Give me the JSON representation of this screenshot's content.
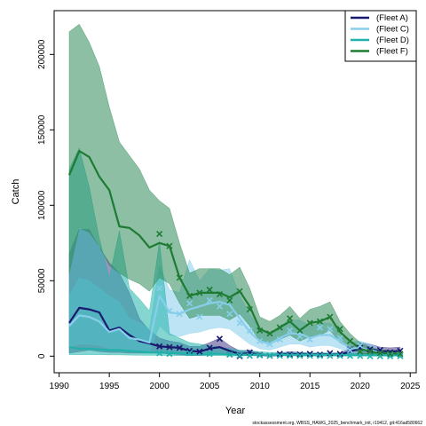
{
  "chart_data": {
    "type": "line",
    "title": "",
    "xlabel": "Year",
    "ylabel": "Catch",
    "xlim": [
      1989.5,
      2025.6
    ],
    "ylim": [
      -11000,
      229000
    ],
    "xticks": [
      1990,
      1995,
      2000,
      2005,
      2010,
      2015,
      2020,
      2025
    ],
    "yticks": [
      0,
      50000,
      100000,
      150000,
      200000
    ],
    "legend_position": "top-right",
    "footer": "stockassessment.org, WBSS_HAWG_2025_benchmark_init, r19412, git:416ad580662",
    "x": [
      1991,
      1992,
      1993,
      1994,
      1995,
      1996,
      1997,
      1998,
      1999,
      2000,
      2001,
      2002,
      2003,
      2004,
      2005,
      2006,
      2007,
      2008,
      2009,
      2010,
      2011,
      2012,
      2013,
      2014,
      2015,
      2016,
      2017,
      2018,
      2019,
      2020,
      2021,
      2022,
      2023,
      2024
    ],
    "series": [
      {
        "name": "(Fleet A)",
        "color": "#191970",
        "band_color": "#483d8b",
        "fit": [
          22000,
          32000,
          31000,
          29000,
          17000,
          19000,
          14000,
          10000,
          8500,
          6500,
          6000,
          5500,
          3500,
          3000,
          5000,
          6000,
          3500,
          1500,
          2000,
          1000,
          500,
          1000,
          1500,
          1200,
          1000,
          1000,
          1000,
          1000,
          3000,
          5000,
          4500,
          3500,
          3000,
          3500
        ],
        "lower": [
          2000,
          3000,
          4000,
          3000,
          2500,
          2500,
          2000,
          2000,
          2000,
          2000,
          1500,
          1000,
          500,
          500,
          1000,
          1500,
          800,
          300,
          500,
          200,
          100,
          200,
          300,
          200,
          200,
          200,
          200,
          200,
          500,
          1500,
          1000,
          800,
          700,
          800
        ],
        "upper": [
          68000,
          84000,
          84000,
          72000,
          62000,
          55000,
          42000,
          25000,
          17000,
          12000,
          10000,
          9000,
          6500,
          6500,
          9000,
          12000,
          7000,
          3500,
          4000,
          2000,
          1200,
          2000,
          3000,
          2500,
          2000,
          2000,
          2000,
          2000,
          5500,
          9000,
          8000,
          6000,
          5500,
          6000
        ],
        "obs": [
          null,
          null,
          null,
          null,
          null,
          null,
          null,
          null,
          null,
          6500,
          6000,
          5500,
          3500,
          3000,
          5500,
          11500,
          1000,
          0,
          2500,
          800,
          300,
          1500,
          1000,
          1200,
          1500,
          1000,
          2000,
          1500,
          4500,
          5500,
          4500,
          4000,
          2500,
          3500
        ]
      },
      {
        "name": "(Fleet C)",
        "color": "#87ceeb",
        "band_color": "#87ceeb",
        "fit": [
          20000,
          27000,
          26000,
          23000,
          16000,
          18000,
          12000,
          11000,
          9000,
          40000,
          29000,
          28000,
          31000,
          33000,
          35000,
          36000,
          34000,
          25000,
          16000,
          10000,
          8000,
          12000,
          15000,
          15000,
          12000,
          14000,
          14000,
          10000,
          5000,
          5500,
          4000,
          2500,
          1500,
          1500
        ],
        "lower": [
          6000,
          8000,
          8000,
          7000,
          5000,
          5000,
          4000,
          4000,
          3000,
          20000,
          14000,
          13000,
          15000,
          16000,
          18000,
          19000,
          18000,
          13000,
          8000,
          5000,
          4000,
          6000,
          8000,
          8000,
          6000,
          7000,
          7000,
          5000,
          2500,
          2500,
          2000,
          1000,
          700,
          700
        ],
        "upper": [
          40000,
          52000,
          50000,
          45000,
          40000,
          36000,
          25000,
          22000,
          18000,
          60000,
          44000,
          42000,
          64000,
          50000,
          58000,
          57000,
          58000,
          40000,
          28000,
          18000,
          14000,
          20000,
          24000,
          24000,
          20000,
          22000,
          22000,
          17000,
          9000,
          10000,
          8000,
          5000,
          3000,
          3000
        ],
        "obs": [
          null,
          null,
          null,
          null,
          null,
          null,
          null,
          null,
          null,
          45000,
          30000,
          28000,
          35000,
          26000,
          37000,
          33000,
          28000,
          22000,
          17000,
          10000,
          8000,
          11000,
          17000,
          13000,
          11000,
          19000,
          18000,
          12000,
          4000,
          7000,
          3000,
          2000,
          1000,
          1000
        ]
      },
      {
        "name": "(Fleet D)",
        "color": "#20b2aa",
        "band_color": "#20b2aa",
        "fit": [
          6000,
          5000,
          5000,
          4500,
          4000,
          4000,
          3500,
          3000,
          2500,
          2500,
          2000,
          2000,
          1500,
          1500,
          1500,
          1500,
          1200,
          1000,
          1000,
          1000,
          800,
          800,
          800,
          800,
          700,
          700,
          700,
          700,
          600,
          600,
          500,
          500,
          500,
          500
        ],
        "lower": [
          1000,
          1000,
          1000,
          1000,
          800,
          800,
          700,
          600,
          500,
          500,
          400,
          400,
          300,
          300,
          300,
          300,
          200,
          200,
          200,
          200,
          150,
          150,
          150,
          150,
          150,
          150,
          150,
          150,
          100,
          100,
          100,
          100,
          100,
          100
        ],
        "upper": [
          124000,
          138000,
          112000,
          78000,
          52000,
          83000,
          45000,
          38000,
          30000,
          76000,
          15000,
          12000,
          9000,
          8000,
          7000,
          6000,
          5000,
          4000,
          3500,
          3000,
          2500,
          2500,
          2500,
          2500,
          2200,
          2200,
          2200,
          2200,
          2000,
          2000,
          1800,
          1800,
          1800,
          1800
        ],
        "obs": [
          null,
          null,
          null,
          null,
          null,
          null,
          null,
          null,
          null,
          2000,
          1500,
          null,
          2000,
          null,
          1500,
          null,
          1000,
          500,
          300,
          500,
          300,
          300,
          300,
          300,
          300,
          200,
          200,
          200,
          200,
          200,
          0,
          0,
          0,
          0
        ]
      },
      {
        "name": "(Fleet F)",
        "color": "#1e7b32",
        "band_color": "#2e8b57",
        "fit": [
          120000,
          136000,
          132000,
          119000,
          110000,
          86000,
          85000,
          80000,
          72000,
          75000,
          73000,
          52000,
          40000,
          42000,
          42000,
          42000,
          39000,
          43000,
          33000,
          18000,
          15000,
          19000,
          23000,
          17000,
          22000,
          23000,
          26000,
          16000,
          10000,
          5000,
          3000,
          2000,
          2000,
          1500
        ],
        "lower": [
          55000,
          85000,
          82000,
          73000,
          60000,
          55000,
          51000,
          48000,
          43000,
          52000,
          48000,
          35000,
          25000,
          27000,
          27000,
          27000,
          24000,
          28000,
          20000,
          10000,
          8000,
          11000,
          14000,
          10000,
          13000,
          14000,
          17000,
          9000,
          5000,
          2000,
          1200,
          800,
          800,
          600
        ],
        "upper": [
          215000,
          220000,
          208000,
          192000,
          165000,
          142000,
          133000,
          124000,
          110000,
          103000,
          98000,
          75000,
          55000,
          58000,
          58000,
          58000,
          54000,
          59000,
          45000,
          26000,
          23000,
          27000,
          33000,
          25000,
          31000,
          33000,
          36000,
          23000,
          15000,
          9000,
          6000,
          4000,
          4000,
          3000
        ],
        "obs": [
          null,
          null,
          null,
          null,
          null,
          null,
          null,
          null,
          null,
          81000,
          73000,
          52000,
          40000,
          42000,
          44000,
          41000,
          37000,
          43000,
          31000,
          17000,
          15000,
          19000,
          25000,
          17000,
          22000,
          23000,
          26000,
          18000,
          10000,
          3000,
          3000,
          2000,
          1500,
          1500
        ]
      }
    ]
  }
}
